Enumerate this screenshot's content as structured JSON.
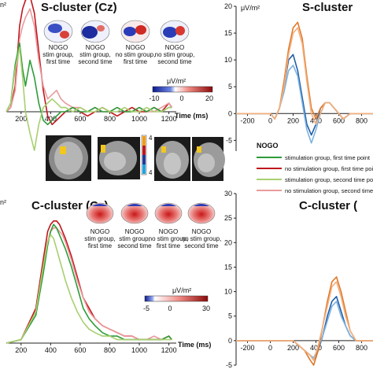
{
  "chart_data": [
    {
      "type": "line",
      "panel": "top-left",
      "title": "S-cluster (Cz)",
      "ylabel_fragment": "n²",
      "xlabel": "Time (ms)",
      "x_ticks": [
        "200",
        "400",
        "600",
        "800",
        "1000",
        "1200"
      ],
      "xlim": [
        100,
        1250
      ],
      "ylim": [
        -12,
        28
      ],
      "topomap_labels": [
        [
          "NOGO",
          "stim group,",
          "first time"
        ],
        [
          "NOGO",
          "stim group,",
          "second time"
        ],
        [
          "NOGO",
          "no stim group,",
          "first time"
        ],
        [
          "NOGO",
          "no stim group,",
          "second time"
        ]
      ],
      "colorbar": {
        "unit": "μV/m²",
        "min": "-10",
        "mid": "0",
        "max": "20"
      },
      "brain_scale": {
        "max": "4",
        "min": "4"
      },
      "series": [
        {
          "color": "#c0171d",
          "x": [
            100,
            130,
            160,
            190,
            210,
            230,
            260,
            290,
            320,
            350,
            380,
            410,
            440,
            470,
            500,
            550,
            600,
            650,
            700,
            750,
            800,
            850,
            900,
            950,
            1000,
            1050,
            1100,
            1150,
            1200,
            1220
          ],
          "y": [
            0,
            1,
            6,
            20,
            24,
            26,
            27,
            23,
            14,
            5,
            -1,
            -3,
            -2,
            -1,
            0,
            1,
            0,
            -1,
            0,
            1,
            0,
            -1,
            0,
            1,
            0,
            0,
            1,
            0,
            2,
            1
          ]
        },
        {
          "color": "#e99a9c",
          "x": [
            100,
            130,
            160,
            190,
            210,
            230,
            260,
            290,
            320,
            350,
            380,
            410,
            440,
            470,
            500,
            550,
            600,
            650,
            700,
            750,
            800,
            850,
            900,
            950,
            1000,
            1050,
            1100,
            1150,
            1200,
            1220
          ],
          "y": [
            0,
            1,
            5,
            17,
            20,
            22,
            24,
            20,
            12,
            6,
            3,
            4,
            5,
            3,
            2,
            1,
            1,
            0,
            1,
            0,
            0,
            1,
            0,
            0,
            1,
            0,
            0,
            1,
            2,
            1
          ]
        },
        {
          "color": "#2e9c3a",
          "x": [
            100,
            130,
            160,
            190,
            210,
            230,
            260,
            290,
            320,
            350,
            380,
            410,
            440,
            470,
            500,
            550,
            600,
            650,
            700,
            750,
            800,
            850,
            900,
            950,
            1000,
            1050,
            1100,
            1150,
            1200,
            1220
          ],
          "y": [
            0,
            2,
            11,
            16,
            10,
            6,
            12,
            8,
            2,
            -2,
            -3,
            -2,
            -1,
            0,
            0,
            1,
            0,
            0,
            1,
            0,
            0,
            1,
            0,
            0,
            1,
            0,
            1,
            0,
            1,
            1
          ]
        },
        {
          "color": "#a8cf6f",
          "x": [
            100,
            130,
            160,
            190,
            210,
            230,
            260,
            290,
            320,
            350,
            380,
            410,
            440,
            470,
            500,
            550,
            600,
            650,
            700,
            750,
            800,
            850,
            900,
            950,
            1000,
            1050,
            1100,
            1150,
            1200,
            1220
          ],
          "y": [
            0,
            2,
            10,
            15,
            8,
            0,
            -5,
            -9,
            -3,
            1,
            2,
            3,
            2,
            1,
            1,
            0,
            1,
            0,
            0,
            1,
            0,
            0,
            1,
            0,
            0,
            1,
            0,
            0,
            1,
            1
          ]
        }
      ]
    },
    {
      "type": "line",
      "panel": "top-right",
      "title": "S-cluster",
      "ylabel": "μV/m²",
      "x_ticks": [
        "-200",
        "0",
        "200",
        "400",
        "600",
        "800"
      ],
      "y_ticks": [
        "20",
        "15",
        "10",
        "5",
        "0",
        "-5"
      ],
      "xlim": [
        -300,
        900
      ],
      "ylim": [
        -7,
        20
      ],
      "legend": {
        "title": "NOGO",
        "entries": [
          {
            "label": "stimulation group, first time point",
            "color": "#2e9c3a"
          },
          {
            "label": "no stimulation group, first time point",
            "color": "#c0171d"
          },
          {
            "label": "stimulation group, second time point",
            "color": "#a8cf6f"
          },
          {
            "label": "no stimulation group, second time point",
            "color": "#e99a9c"
          }
        ]
      },
      "series": [
        {
          "color": "#1f5fa8",
          "x": [
            -300,
            -200,
            -100,
            -40,
            0,
            40,
            80,
            120,
            160,
            200,
            240,
            280,
            320,
            360,
            400,
            440,
            480,
            520,
            560,
            600,
            640,
            700,
            750,
            800,
            850,
            900
          ],
          "y": [
            0,
            0,
            0,
            0,
            0,
            -1,
            1,
            5,
            10,
            11,
            8,
            3,
            -2,
            -4,
            -2,
            1,
            2,
            2,
            1,
            0,
            -1,
            0,
            0,
            0,
            0,
            0
          ]
        },
        {
          "color": "#7eb2e0",
          "x": [
            -300,
            -200,
            -100,
            -40,
            0,
            40,
            80,
            120,
            160,
            200,
            240,
            280,
            320,
            360,
            400,
            440,
            480,
            520,
            560,
            600,
            640,
            700,
            750,
            800,
            850,
            900
          ],
          "y": [
            0,
            0,
            0,
            0,
            0,
            -1,
            1,
            4,
            8,
            9,
            7,
            2,
            -3,
            -5.5,
            -3,
            0,
            2,
            2,
            1,
            0,
            -1,
            0,
            0,
            0,
            0,
            0
          ]
        },
        {
          "color": "#e07a2c",
          "x": [
            -300,
            -200,
            -100,
            -40,
            0,
            40,
            80,
            120,
            160,
            200,
            240,
            280,
            320,
            360,
            400,
            440,
            480,
            520,
            560,
            600,
            640,
            700,
            750,
            800,
            850,
            900
          ],
          "y": [
            0,
            0,
            0,
            0,
            0,
            -1,
            1,
            6,
            12,
            16,
            17,
            14,
            7,
            1,
            -1,
            1,
            2,
            2,
            1,
            0,
            -1,
            0,
            0,
            0,
            0,
            0
          ]
        },
        {
          "color": "#f3b07e",
          "x": [
            -300,
            -200,
            -100,
            -40,
            0,
            40,
            80,
            120,
            160,
            200,
            240,
            280,
            320,
            360,
            400,
            440,
            480,
            520,
            560,
            600,
            640,
            700,
            750,
            800,
            850,
            900
          ],
          "y": [
            0,
            0,
            0,
            0,
            0,
            -1,
            1,
            5,
            11,
            15,
            16,
            13,
            6,
            0,
            -2,
            0,
            2,
            2,
            1,
            0,
            -1,
            0,
            0,
            0,
            0,
            0
          ]
        }
      ]
    },
    {
      "type": "line",
      "panel": "bottom-left",
      "title": "C-cluster (Cz)",
      "ylabel_fragment": "n²",
      "xlabel": "Time (ms)",
      "x_ticks": [
        "200",
        "400",
        "600",
        "800",
        "1000",
        "1200"
      ],
      "xlim": [
        100,
        1250
      ],
      "ylim": [
        -2,
        44
      ],
      "topomap_labels": [
        [
          "NOGO",
          "stim group,",
          "first time"
        ],
        [
          "NOGO",
          "stim group,",
          "second time"
        ],
        [
          "NOGO",
          "no stim group,",
          "first time"
        ],
        [
          "NOGO",
          "no stim group,",
          "second time"
        ]
      ],
      "colorbar": {
        "unit": "μV/m²",
        "min": "-5",
        "mid": "0",
        "max": "30"
      },
      "series": [
        {
          "color": "#c0171d",
          "x": [
            100,
            200,
            300,
            350,
            380,
            400,
            420,
            440,
            460,
            480,
            500,
            540,
            580,
            620,
            660,
            700,
            750,
            800,
            850,
            900,
            950,
            1000,
            1050,
            1100,
            1150,
            1200,
            1220
          ],
          "y": [
            0,
            1,
            10,
            24,
            32,
            34,
            35,
            35,
            34,
            32,
            30,
            25,
            19,
            13,
            10,
            7,
            5,
            4,
            3,
            2,
            2,
            1,
            1,
            1,
            1,
            2,
            1
          ]
        },
        {
          "color": "#e99a9c",
          "x": [
            100,
            200,
            300,
            350,
            380,
            400,
            420,
            440,
            460,
            480,
            500,
            540,
            580,
            620,
            660,
            700,
            750,
            800,
            850,
            900,
            950,
            1000,
            1050,
            1100,
            1150,
            1200,
            1220
          ],
          "y": [
            0,
            1,
            9,
            22,
            29,
            32,
            33,
            33,
            32,
            31,
            29,
            24,
            18,
            13,
            9,
            7,
            5,
            4,
            3,
            2,
            2,
            1,
            1,
            2,
            1,
            2,
            1
          ]
        },
        {
          "color": "#2e9c3a",
          "x": [
            100,
            200,
            300,
            350,
            380,
            400,
            420,
            440,
            460,
            480,
            500,
            540,
            580,
            620,
            660,
            700,
            750,
            800,
            850,
            900,
            950,
            1000,
            1050,
            1100,
            1150,
            1200,
            1220
          ],
          "y": [
            0,
            1,
            8,
            20,
            28,
            32,
            34,
            33,
            31,
            29,
            27,
            22,
            16,
            10,
            7,
            5,
            3,
            2,
            2,
            1,
            1,
            1,
            1,
            1,
            1,
            2,
            1
          ]
        },
        {
          "color": "#a8cf6f",
          "x": [
            100,
            200,
            300,
            350,
            380,
            400,
            420,
            440,
            460,
            480,
            500,
            540,
            580,
            620,
            660,
            700,
            750,
            800,
            850,
            900,
            950,
            1000,
            1050,
            1100,
            1150,
            1200,
            1220
          ],
          "y": [
            0,
            1,
            9,
            22,
            29,
            31,
            30,
            27,
            24,
            21,
            18,
            13,
            9,
            6,
            4,
            3,
            2,
            2,
            1,
            1,
            1,
            1,
            1,
            1,
            1,
            1,
            1
          ]
        }
      ]
    },
    {
      "type": "line",
      "panel": "bottom-right",
      "title": "C-cluster (",
      "x_ticks": [
        "-200",
        "0",
        "200",
        "400",
        "600",
        "800"
      ],
      "y_ticks": [
        "30",
        "25",
        "20",
        "15",
        "10",
        "5",
        "0",
        "-5"
      ],
      "xlim": [
        -300,
        900
      ],
      "ylim": [
        -5,
        30
      ],
      "series": [
        {
          "color": "#1f5fa8",
          "x": [
            -300,
            -200,
            -100,
            0,
            100,
            200,
            250,
            300,
            350,
            380,
            420,
            460,
            500,
            540,
            580,
            620,
            660,
            700,
            750,
            800,
            850,
            900
          ],
          "y": [
            0,
            0,
            0,
            0,
            0,
            0,
            -1,
            -2,
            -3,
            -4,
            -2,
            1,
            5,
            8,
            9,
            6,
            3,
            1,
            0,
            0,
            0,
            0
          ]
        },
        {
          "color": "#7eb2e0",
          "x": [
            -300,
            -200,
            -100,
            0,
            100,
            200,
            250,
            300,
            350,
            380,
            420,
            460,
            500,
            540,
            580,
            620,
            660,
            700,
            750,
            800,
            850,
            900
          ],
          "y": [
            0,
            0,
            0,
            0,
            0,
            0,
            -1,
            -2,
            -3,
            -3.5,
            -1.5,
            1,
            4,
            7,
            8,
            5,
            3,
            1,
            0,
            0,
            0,
            0
          ]
        },
        {
          "color": "#e07a2c",
          "x": [
            -300,
            -200,
            -100,
            0,
            100,
            200,
            250,
            300,
            350,
            380,
            420,
            460,
            500,
            540,
            580,
            620,
            660,
            700,
            750,
            800,
            850,
            900
          ],
          "y": [
            0,
            0,
            0,
            0,
            0,
            0,
            -1,
            -2,
            -4,
            -5,
            -2,
            3,
            8,
            12,
            13,
            10,
            6,
            2,
            0,
            0,
            0,
            0
          ]
        },
        {
          "color": "#f3b07e",
          "x": [
            -300,
            -200,
            -100,
            0,
            100,
            200,
            250,
            300,
            350,
            380,
            420,
            460,
            500,
            540,
            580,
            620,
            660,
            700,
            750,
            800,
            850,
            900
          ],
          "y": [
            0,
            0,
            0,
            0,
            0,
            0,
            -1,
            -2,
            -3,
            -4,
            -1,
            3,
            7,
            11,
            12,
            9,
            5,
            2,
            0,
            0,
            0,
            0
          ]
        }
      ]
    }
  ]
}
